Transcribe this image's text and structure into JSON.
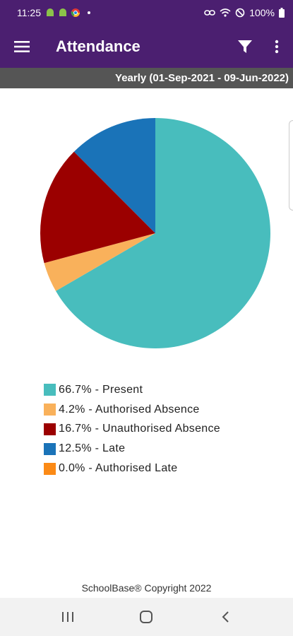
{
  "status_bar": {
    "time": "11:25",
    "battery": "100%",
    "icons": [
      "android-icon",
      "android-icon",
      "chrome-icon",
      "link-icon",
      "wifi-icon",
      "do-not-disturb-icon",
      "battery-icon"
    ]
  },
  "app_bar": {
    "title": "Attendance",
    "icons": [
      "menu-icon",
      "filter-icon",
      "more-vert-icon"
    ]
  },
  "period": "Yearly (01-Sep-2021 - 09-Jun-2022)",
  "chart_data": {
    "type": "pie",
    "slices": [
      {
        "label": "Present",
        "value": 66.7,
        "color": "#48bdbd"
      },
      {
        "label": "Authorised Absence",
        "value": 4.2,
        "color": "#f9b15b"
      },
      {
        "label": "Unauthorised Absence",
        "value": 16.7,
        "color": "#9b0000"
      },
      {
        "label": "Late",
        "value": 12.5,
        "color": "#1a73b8"
      },
      {
        "label": "Authorised Late",
        "value": 0.0,
        "color": "#fb8a16"
      }
    ],
    "legend": [
      "66.7% - Present",
      "4.2% - Authorised Absence",
      "16.7% - Unauthorised Absence",
      "12.5% - Late",
      "0.0% - Authorised Late"
    ]
  },
  "footer": "SchoolBase® Copyright 2022",
  "nav_bar": {
    "icons": [
      "recent-apps-icon",
      "home-icon",
      "back-icon"
    ]
  }
}
